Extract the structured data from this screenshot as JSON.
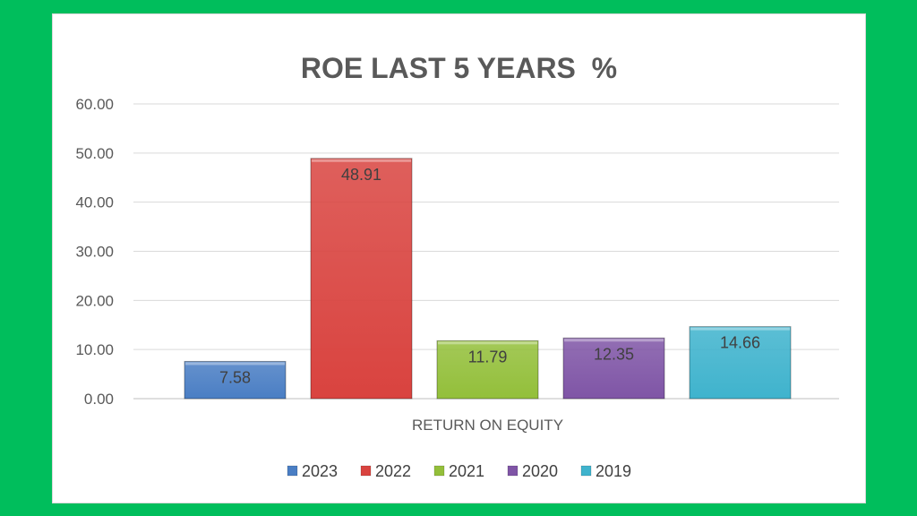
{
  "chart_data": {
    "type": "bar",
    "title": "ROE LAST 5 YEARS  %",
    "categories": [
      "RETURN ON EQUITY"
    ],
    "series": [
      {
        "name": "2023",
        "values": [
          7.58
        ],
        "color": "#4A7EC4"
      },
      {
        "name": "2022",
        "values": [
          48.91
        ],
        "color": "#D9433F"
      },
      {
        "name": "2021",
        "values": [
          11.79
        ],
        "color": "#93BF3A"
      },
      {
        "name": "2020",
        "values": [
          12.35
        ],
        "color": "#7F55A6"
      },
      {
        "name": "2019",
        "values": [
          14.66
        ],
        "color": "#3FB3CD"
      }
    ],
    "y_ticks": [
      "0.00",
      "10.00",
      "20.00",
      "30.00",
      "40.00",
      "50.00",
      "60.00"
    ],
    "ylim": [
      0,
      60
    ],
    "grid": true,
    "legend": "bottom",
    "data_labels": [
      "7.58",
      "48.91",
      "11.79",
      "12.35",
      "14.66"
    ]
  }
}
